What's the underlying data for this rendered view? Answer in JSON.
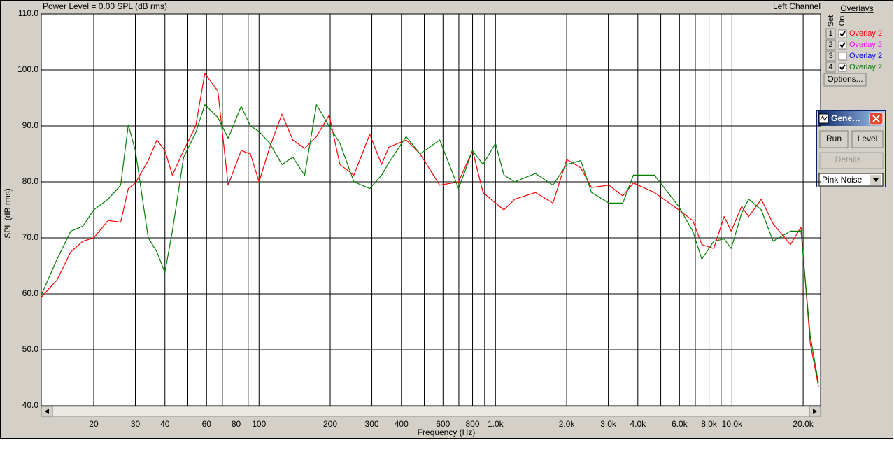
{
  "chart_data": {
    "type": "line",
    "title": "Power Level = 0.00 SPL (dB rms)",
    "channel": "Left Channel",
    "x_label": "Frequency (Hz)",
    "y_label": "SPL (dB rms)",
    "log_x": true,
    "grid": true,
    "xlim": [
      12,
      23700
    ],
    "ylim": [
      40,
      110
    ],
    "yticks": [
      {
        "value": 40,
        "label": "40.0"
      },
      {
        "value": 50,
        "label": "50.0"
      },
      {
        "value": 60,
        "label": "60.0"
      },
      {
        "value": 70,
        "label": "70.0"
      },
      {
        "value": 80,
        "label": "80.0"
      },
      {
        "value": 90,
        "label": "90.0"
      },
      {
        "value": 100,
        "label": "100.0"
      },
      {
        "value": 110,
        "label": "110.0"
      }
    ],
    "xticks": [
      20,
      30,
      40,
      60,
      80,
      100,
      200,
      300,
      400,
      600,
      800,
      {
        "value": 1000,
        "label": "1.0k"
      },
      {
        "value": 2000,
        "label": "2.0k"
      },
      {
        "value": 3000,
        "label": "3.0k"
      },
      {
        "value": 4000,
        "label": "4.0k"
      },
      {
        "value": 6000,
        "label": "6.0k"
      },
      {
        "value": 8000,
        "label": "8.0k"
      },
      {
        "value": 10000,
        "label": "10.0k"
      },
      {
        "value": 20000,
        "label": "20.0k"
      }
    ],
    "xminor": [
      50,
      70,
      90,
      500,
      700,
      900,
      5000,
      7000,
      9000
    ],
    "x": [
      12,
      14,
      16,
      18,
      20,
      23,
      26,
      28,
      30,
      34,
      37,
      40,
      43,
      48,
      54,
      59,
      67,
      74,
      84,
      92,
      100,
      111,
      125,
      139,
      156,
      175,
      198,
      220,
      252,
      294,
      330,
      354,
      419,
      480,
      581,
      698,
      800,
      886,
      1000,
      1086,
      1206,
      1476,
      1750,
      2000,
      2296,
      2546,
      3018,
      3458,
      3828,
      4700,
      5958,
      6826,
      7460,
      8376,
      9272,
      9932,
      10994,
      11776,
      13306,
      14932,
      17700,
      19590,
      21430,
      23240
    ],
    "series": [
      {
        "color": "#ff0000",
        "values": [
          59.4,
          62.5,
          67.5,
          69.4,
          70,
          73.1,
          72.8,
          78.8,
          79.8,
          83.8,
          87.5,
          85.6,
          81.2,
          85.6,
          90,
          99.4,
          96.2,
          79.4,
          85.6,
          85,
          80,
          86.2,
          92.1,
          87.5,
          86,
          88.1,
          91.9,
          83.1,
          81.2,
          88.5,
          83.1,
          86.2,
          87.5,
          85,
          79.4,
          80,
          85.6,
          78.1,
          76.2,
          75,
          76.9,
          78.1,
          76.2,
          84,
          82.5,
          79,
          79.4,
          77.5,
          79.8,
          78.1,
          75,
          73.1,
          68.8,
          68.1,
          73.8,
          71.2,
          75.6,
          73.8,
          76.9,
          72.5,
          68.8,
          71.9,
          51.2,
          43.4
        ]
      },
      {
        "color": "#008000",
        "values": [
          59.8,
          66.2,
          71.2,
          72.1,
          75,
          76.9,
          79.4,
          90.2,
          85.6,
          70,
          67.5,
          63.8,
          71.2,
          84.4,
          88.8,
          93.8,
          91.5,
          87.8,
          93.5,
          90,
          89,
          86.9,
          83.1,
          84.4,
          81.2,
          93.8,
          90,
          86.9,
          80,
          78.8,
          81.2,
          83.4,
          88.1,
          85,
          87.5,
          78.8,
          85.6,
          83.1,
          86.9,
          81.2,
          80,
          81.5,
          79.4,
          83.1,
          83.8,
          78.1,
          76.2,
          76.2,
          81.2,
          81.2,
          75.6,
          71.2,
          66.2,
          69.4,
          69.8,
          68.1,
          74.4,
          76.9,
          75,
          69.4,
          71.2,
          71.2,
          52.5,
          44
        ]
      }
    ]
  },
  "overlays": {
    "title": "Overlays",
    "set_label": "Set",
    "on_label": "On",
    "rows": [
      {
        "set": 1,
        "label": "Overlay 2",
        "color": "#ff0000",
        "checked": true
      },
      {
        "set": 2,
        "label": "Overlay 2",
        "color": "#ff00ff",
        "checked": true
      },
      {
        "set": 3,
        "label": "Overlay 2",
        "color": "#0000ff",
        "checked": false
      },
      {
        "set": 4,
        "label": "Overlay 2",
        "color": "#008000",
        "checked": true
      }
    ],
    "options": "Options..."
  },
  "generator": {
    "title": "Gene…",
    "run": "Run",
    "level": "Level",
    "details": "Details...",
    "source": "Pink Noise"
  }
}
